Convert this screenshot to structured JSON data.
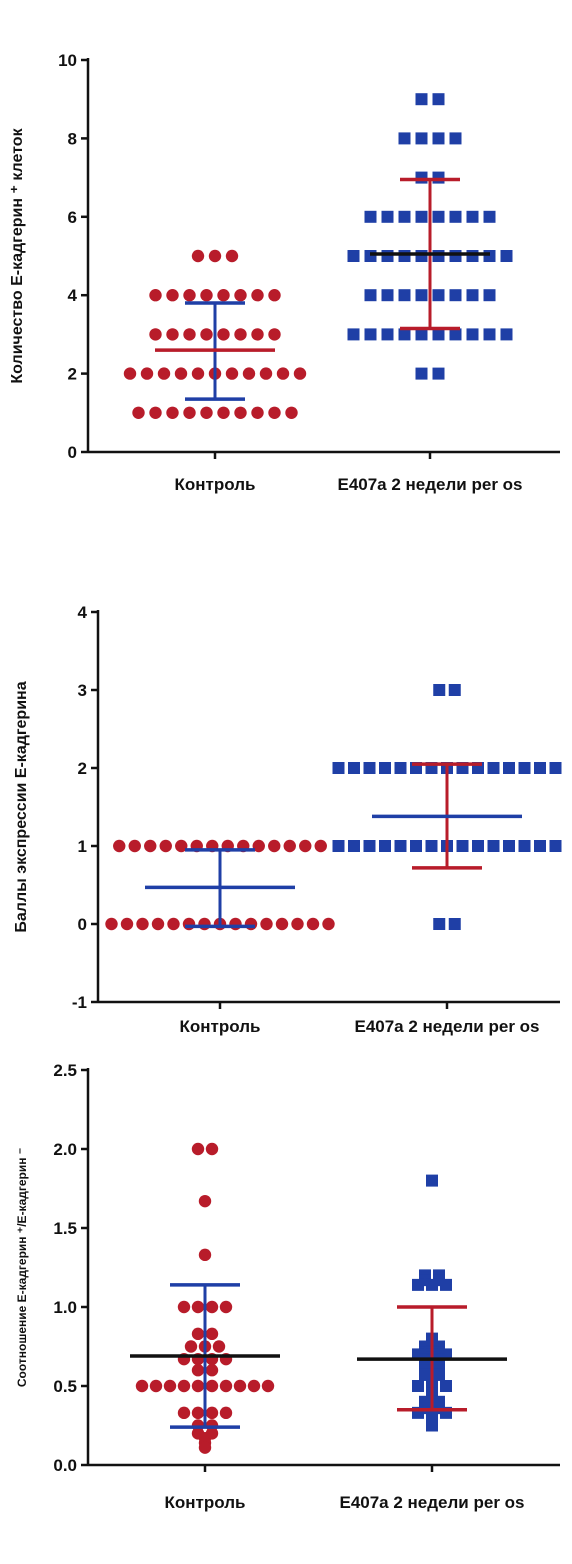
{
  "chart_data": [
    {
      "type": "scatter",
      "ylabel": "Количество Е-кадгерин ⁺ клеток",
      "ylim": [
        0,
        10
      ],
      "yticks": [
        "0",
        "2",
        "4",
        "6",
        "8",
        "10"
      ],
      "categories": [
        "Контроль",
        "Е407а 2 недели per os"
      ],
      "colors": [
        "#b81c2a",
        "#1f3fa6"
      ],
      "marker_shapes": [
        "circle",
        "square"
      ],
      "series": [
        {
          "values": [
            5,
            5,
            5,
            4,
            4,
            4,
            4,
            4,
            4,
            4,
            4,
            3,
            3,
            3,
            3,
            3,
            3,
            3,
            3,
            2,
            2,
            2,
            2,
            2,
            2,
            2,
            2,
            2,
            2,
            2,
            1,
            1,
            1,
            1,
            1,
            1,
            1,
            1,
            1,
            1
          ],
          "mean": 2.6,
          "err_high": 3.8,
          "err_low": 1.35,
          "mean_color": "#b81c2a",
          "err_color": "#1f3fa6"
        },
        {
          "values": [
            9,
            9,
            8,
            8,
            8,
            8,
            7,
            7,
            6,
            6,
            6,
            6,
            6,
            6,
            6,
            6,
            5,
            5,
            5,
            5,
            5,
            5,
            5,
            5,
            5,
            5,
            4,
            4,
            4,
            4,
            4,
            4,
            4,
            4,
            3,
            3,
            3,
            3,
            3,
            3,
            3,
            3,
            3,
            3,
            2,
            2
          ],
          "mean": 5.05,
          "err_high": 6.95,
          "err_low": 3.15,
          "mean_color": "#111111",
          "err_color": "#b81c2a"
        }
      ]
    },
    {
      "type": "scatter",
      "ylabel": "Баллы экспрессии Е-кадгерина",
      "ylim": [
        -1,
        4
      ],
      "yticks": [
        "-1",
        "0",
        "1",
        "2",
        "3",
        "4"
      ],
      "categories": [
        "Контроль",
        "Е407а 2 недели per os"
      ],
      "colors": [
        "#b81c2a",
        "#1f3fa6"
      ],
      "marker_shapes": [
        "circle",
        "square"
      ],
      "series": [
        {
          "values": [
            1,
            1,
            1,
            1,
            1,
            1,
            1,
            1,
            1,
            1,
            1,
            1,
            1,
            1,
            0,
            0,
            0,
            0,
            0,
            0,
            0,
            0,
            0,
            0,
            0,
            0,
            0,
            0,
            0
          ],
          "mean": 0.47,
          "err_high": 0.95,
          "err_low": -0.03,
          "mean_color": "#1f3fa6",
          "err_color": "#1f3fa6"
        },
        {
          "values": [
            3,
            3,
            2,
            2,
            2,
            2,
            2,
            2,
            2,
            2,
            2,
            2,
            2,
            2,
            2,
            2,
            2,
            1,
            1,
            1,
            1,
            1,
            1,
            1,
            1,
            1,
            1,
            1,
            1,
            1,
            1,
            1,
            0,
            0
          ],
          "mean": 1.38,
          "err_high": 2.05,
          "err_low": 0.72,
          "mean_color": "#1f3fa6",
          "err_color": "#b81c2a"
        }
      ]
    },
    {
      "type": "scatter",
      "ylabel": "Соотношение Е-кадгерин ⁺/Е-кадгерин ⁻",
      "ylim": [
        0,
        2.5
      ],
      "yticks": [
        "0.0",
        "0.5",
        "1.0",
        "1.5",
        "2.0",
        "2.5"
      ],
      "categories": [
        "Контроль",
        "Е407а 2 недели per os"
      ],
      "colors": [
        "#b81c2a",
        "#1f3fa6"
      ],
      "marker_shapes": [
        "circle",
        "square"
      ],
      "series": [
        {
          "values": [
            2.0,
            2.0,
            1.67,
            1.33,
            1.0,
            1.0,
            1.0,
            1.0,
            0.83,
            0.83,
            0.75,
            0.75,
            0.75,
            0.67,
            0.67,
            0.67,
            0.67,
            0.6,
            0.6,
            0.5,
            0.5,
            0.5,
            0.5,
            0.5,
            0.5,
            0.5,
            0.5,
            0.5,
            0.5,
            0.33,
            0.33,
            0.33,
            0.33,
            0.25,
            0.25,
            0.2,
            0.2,
            0.17,
            0.14,
            0.11
          ],
          "mean": 0.69,
          "err_high": 1.14,
          "err_low": 0.24,
          "mean_color": "#111111",
          "err_color": "#1f3fa6"
        },
        {
          "values": [
            1.8,
            1.2,
            1.2,
            1.17,
            1.17,
            1.14,
            1.14,
            1.14,
            0.8,
            0.75,
            0.75,
            0.72,
            0.71,
            0.71,
            0.7,
            0.7,
            0.7,
            0.68,
            0.67,
            0.67,
            0.66,
            0.63,
            0.6,
            0.6,
            0.57,
            0.57,
            0.5,
            0.5,
            0.5,
            0.45,
            0.4,
            0.4,
            0.38,
            0.36,
            0.36,
            0.33,
            0.33,
            0.33,
            0.3,
            0.25
          ],
          "mean": 0.67,
          "err_high": 1.0,
          "err_low": 0.35,
          "mean_color": "#111111",
          "err_color": "#b81c2a"
        }
      ]
    }
  ]
}
